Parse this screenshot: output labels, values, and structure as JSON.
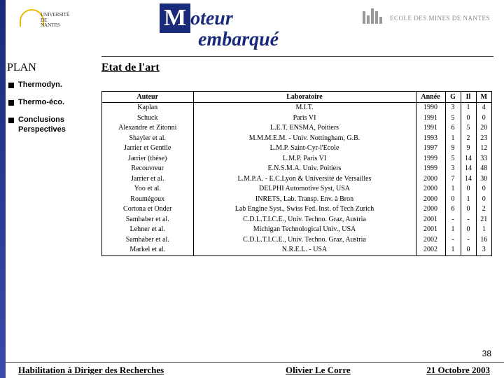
{
  "header": {
    "logo_left_line1": "UNIVERSITÉ DE",
    "logo_left_line2": "NANTES",
    "title_m": "M",
    "title_oteur": "oteur",
    "title_embarque": "embarqué",
    "logo_right_text": "ECOLE DES MINES DE NANTES"
  },
  "plan_label": "PLAN",
  "subtitle": "Etat de l'art",
  "sidebar": {
    "items": [
      {
        "label": "Thermodyn."
      },
      {
        "label": "Thermo-éco."
      },
      {
        "label": "Conclusions Perspectives"
      }
    ]
  },
  "table": {
    "headers": {
      "auteur": "Auteur",
      "labo": "Laboratoire",
      "annee": "Année",
      "g": "G",
      "il": "Il",
      "m": "M"
    },
    "rows": [
      {
        "auteur": "Kaplan",
        "labo": "M.I.T.",
        "annee": "1990",
        "g": "3",
        "il": "1",
        "m": "4"
      },
      {
        "auteur": "Schuck",
        "labo": "Paris VI",
        "annee": "1991",
        "g": "5",
        "il": "0",
        "m": "0"
      },
      {
        "auteur": "Alexandre et Zitonni",
        "labo": "L.E.T. ENSMA, Poitiers",
        "annee": "1991",
        "g": "6",
        "il": "5",
        "m": "20"
      },
      {
        "auteur": "Shayler et al.",
        "labo": "M.M.M.E.M. - Univ. Nottingham, G.B.",
        "annee": "1993",
        "g": "1",
        "il": "2",
        "m": "23"
      },
      {
        "auteur": "Jarrier et Gentile",
        "labo": "L.M.P. Saint-Cyr-l'Ecole",
        "annee": "1997",
        "g": "9",
        "il": "9",
        "m": "12"
      },
      {
        "auteur": "Jarrier (thèse)",
        "labo": "L.M.P. Paris VI",
        "annee": "1999",
        "g": "5",
        "il": "14",
        "m": "33"
      },
      {
        "auteur": "Recouvreur",
        "labo": "E.N.S.M.A. Univ. Poitiers",
        "annee": "1999",
        "g": "3",
        "il": "14",
        "m": "48"
      },
      {
        "auteur": "Jarrier et al.",
        "labo": "L.M.P.A. - E.C.Lyon & Université de Versailles",
        "annee": "2000",
        "g": "7",
        "il": "14",
        "m": "30"
      },
      {
        "auteur": "Yoo et al.",
        "labo": "DELPHI Automotive Syst, USA",
        "annee": "2000",
        "g": "1",
        "il": "0",
        "m": "0"
      },
      {
        "auteur": "Roumégoux",
        "labo": "INRETS, Lab. Transp. Env. à Bron",
        "annee": "2000",
        "g": "0",
        "il": "1",
        "m": "0"
      },
      {
        "auteur": "Cortona et Onder",
        "labo": "Lab Engine Syst., Swiss Fed. Inst. of Tech Zurich",
        "annee": "2000",
        "g": "6",
        "il": "0",
        "m": "2"
      },
      {
        "auteur": "Samhaber et al.",
        "labo": "C.D.L.T.I.C.E., Univ. Techno. Graz, Austria",
        "annee": "2001",
        "g": "-",
        "il": "-",
        "m": "21"
      },
      {
        "auteur": "Lehner et al.",
        "labo": "Michigan Technological Univ., USA",
        "annee": "2001",
        "g": "1",
        "il": "0",
        "m": "1"
      },
      {
        "auteur": "Samhaber et al.",
        "labo": "C.D.L.T.I.C.E., Univ. Techno. Graz, Austria",
        "annee": "2002",
        "g": "-",
        "il": "-",
        "m": "16"
      },
      {
        "auteur": "Markel et al.",
        "labo": "N.R.E.L. - USA",
        "annee": "2002",
        "g": "1",
        "il": "0",
        "m": "3"
      }
    ]
  },
  "page_number": "38",
  "footer": {
    "left": "Habilitation à Diriger des Recherches",
    "mid": "Olivier Le Corre",
    "right": "21 Octobre 2003"
  }
}
